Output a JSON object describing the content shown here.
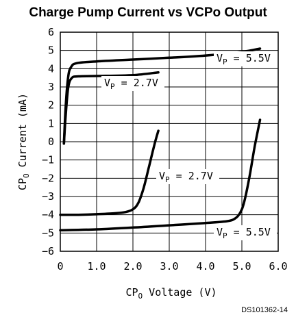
{
  "chart_data": {
    "type": "line",
    "title": "Charge Pump Current vs VCPo Output",
    "xlabel": {
      "main": "CP",
      "sub": "O",
      "rest": " Voltage (V)"
    },
    "ylabel": {
      "main": "CP",
      "sub": "O",
      "rest": " Current (mA)"
    },
    "xlim": [
      0,
      6
    ],
    "ylim": [
      -6,
      6
    ],
    "x_ticks": [
      "0",
      "1.0",
      "2.0",
      "3.0",
      "4.0",
      "5.0",
      "6.0"
    ],
    "y_ticks": [
      "6",
      "5",
      "4",
      "3",
      "2",
      "1",
      "0",
      "−1",
      "−2",
      "−3",
      "−4",
      "−5",
      "−6"
    ],
    "grid": true,
    "series": [
      {
        "name": "VP = 5.5V (source)",
        "points": [
          [
            0.1,
            -0.1
          ],
          [
            0.15,
            2.0
          ],
          [
            0.22,
            3.6
          ],
          [
            0.3,
            4.1
          ],
          [
            0.45,
            4.3
          ],
          [
            1.0,
            4.4
          ],
          [
            2.0,
            4.5
          ],
          [
            3.0,
            4.6
          ],
          [
            4.0,
            4.72
          ],
          [
            5.0,
            4.92
          ],
          [
            5.5,
            5.1
          ]
        ]
      },
      {
        "name": "VP = 2.7V (source)",
        "points": [
          [
            0.1,
            -0.1
          ],
          [
            0.15,
            1.5
          ],
          [
            0.22,
            3.0
          ],
          [
            0.32,
            3.5
          ],
          [
            0.5,
            3.58
          ],
          [
            1.0,
            3.6
          ],
          [
            2.0,
            3.65
          ],
          [
            2.7,
            3.8
          ]
        ]
      },
      {
        "name": "VP = 2.7V (sink)",
        "points": [
          [
            0,
            -4.0
          ],
          [
            0.5,
            -4.0
          ],
          [
            1.0,
            -3.97
          ],
          [
            1.5,
            -3.92
          ],
          [
            1.8,
            -3.85
          ],
          [
            2.0,
            -3.7
          ],
          [
            2.15,
            -3.35
          ],
          [
            2.3,
            -2.5
          ],
          [
            2.45,
            -1.3
          ],
          [
            2.6,
            -0.1
          ],
          [
            2.7,
            0.6
          ]
        ]
      },
      {
        "name": "VP = 5.5V (sink)",
        "points": [
          [
            0,
            -4.85
          ],
          [
            1.0,
            -4.8
          ],
          [
            2.0,
            -4.7
          ],
          [
            3.0,
            -4.58
          ],
          [
            4.0,
            -4.45
          ],
          [
            4.6,
            -4.35
          ],
          [
            4.85,
            -4.15
          ],
          [
            5.0,
            -3.7
          ],
          [
            5.1,
            -3.0
          ],
          [
            5.22,
            -1.8
          ],
          [
            5.35,
            -0.3
          ],
          [
            5.5,
            1.2
          ]
        ]
      }
    ],
    "annotations": [
      {
        "main": "V",
        "sub": "P",
        "rest": " = 5.5V",
        "near_series": 0
      },
      {
        "main": "V",
        "sub": "P",
        "rest": " = 2.7V",
        "near_series": 1
      },
      {
        "main": "V",
        "sub": "P",
        "rest": " = 2.7V",
        "near_series": 2
      },
      {
        "main": "V",
        "sub": "P",
        "rest": " = 5.5V",
        "near_series": 3
      }
    ],
    "figure_code": "DS101362-14"
  }
}
